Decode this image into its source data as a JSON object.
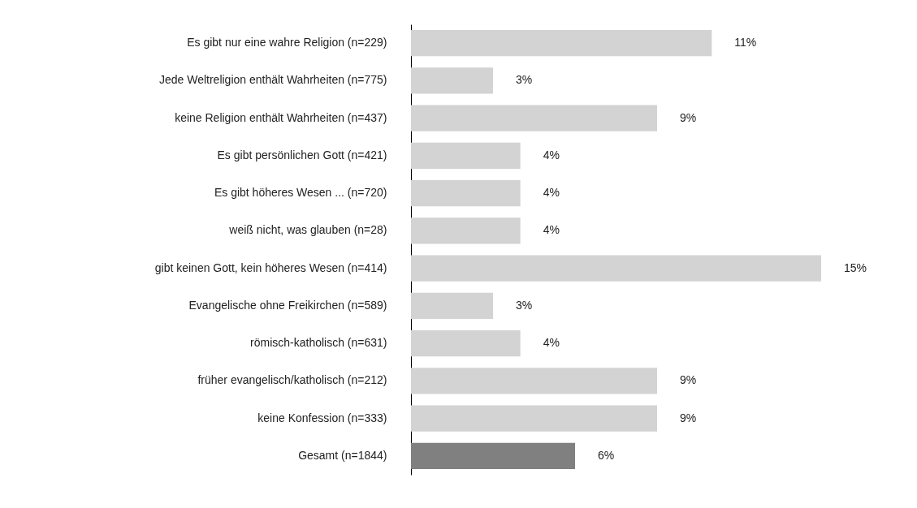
{
  "chart_data": {
    "type": "bar",
    "orientation": "horizontal",
    "categories": [
      "Es gibt nur eine wahre Religion (n=229)",
      "Jede Weltreligion enthält Wahrheiten (n=775)",
      "keine Religion enthält Wahrheiten (n=437)",
      "Es gibt persönlichen Gott (n=421)",
      "Es gibt höheres Wesen ... (n=720)",
      "weiß nicht, was glauben (n=28)",
      "gibt keinen Gott, kein höheres Wesen (n=414)",
      "Evangelische ohne Freikirchen (n=589)",
      "römisch-katholisch (n=631)",
      "früher evangelisch/katholisch (n=212)",
      "keine Konfession (n=333)",
      "Gesamt (n=1844)"
    ],
    "values": [
      11,
      3,
      9,
      4,
      4,
      4,
      15,
      3,
      4,
      9,
      9,
      6
    ],
    "value_labels": [
      "11%",
      "3%",
      "9%",
      "4%",
      "4%",
      "4%",
      "15%",
      "3%",
      "4%",
      "9%",
      "9%",
      "6%"
    ],
    "colors": [
      "#d3d3d3",
      "#d3d3d3",
      "#d3d3d3",
      "#d3d3d3",
      "#d3d3d3",
      "#d3d3d3",
      "#d3d3d3",
      "#d3d3d3",
      "#d3d3d3",
      "#d3d3d3",
      "#d3d3d3",
      "#808080"
    ],
    "legend": false
  }
}
